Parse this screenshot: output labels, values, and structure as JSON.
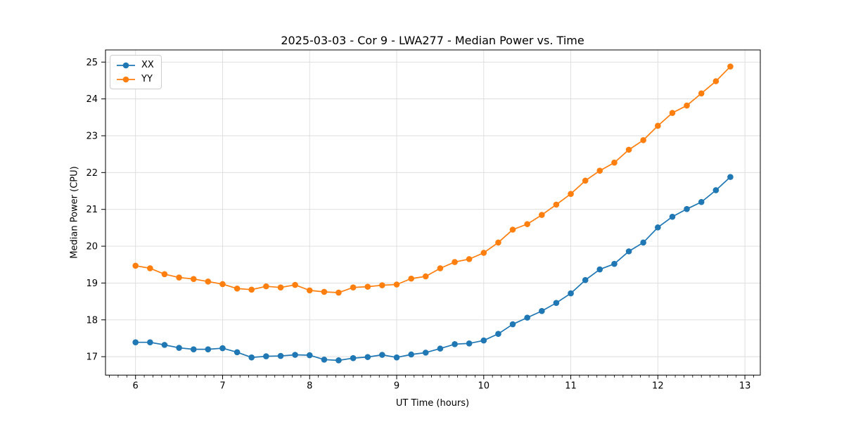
{
  "chart_data": {
    "type": "line",
    "title": "2025-03-03 - Cor 9 - LWA277 - Median Power vs. Time",
    "xlabel": "UT Time (hours)",
    "ylabel": "Median Power (CPU)",
    "xlim": [
      5.655,
      13.177
    ],
    "ylim": [
      16.5,
      25.33
    ],
    "x_major_ticks": [
      6,
      7,
      8,
      9,
      10,
      11,
      12,
      13
    ],
    "y_major_ticks": [
      17,
      18,
      19,
      20,
      21,
      22,
      23,
      24,
      25
    ],
    "x_minor_tick_step": 0.1,
    "grid": true,
    "grid_color": "#dcdcdc",
    "legend_position": "upper-left",
    "marker": "circle",
    "x": [
      6.0,
      6.167,
      6.333,
      6.5,
      6.667,
      6.833,
      7.0,
      7.167,
      7.333,
      7.5,
      7.667,
      7.833,
      8.0,
      8.167,
      8.333,
      8.5,
      8.667,
      8.833,
      9.0,
      9.167,
      9.333,
      9.5,
      9.667,
      9.833,
      10.0,
      10.167,
      10.333,
      10.5,
      10.667,
      10.833,
      11.0,
      11.167,
      11.333,
      11.5,
      11.667,
      11.833,
      12.0,
      12.167,
      12.333,
      12.5,
      12.667,
      12.833
    ],
    "series": [
      {
        "name": "XX",
        "color": "#1f77b4",
        "values": [
          17.39,
          17.39,
          17.32,
          17.24,
          17.2,
          17.2,
          17.23,
          17.12,
          16.98,
          17.01,
          17.02,
          17.05,
          17.04,
          16.92,
          16.9,
          16.96,
          16.99,
          17.05,
          16.98,
          17.06,
          17.11,
          17.22,
          17.34,
          17.36,
          17.44,
          17.62,
          17.88,
          18.06,
          18.24,
          18.46,
          18.72,
          19.08,
          19.37,
          19.52,
          19.86,
          20.1,
          20.51,
          20.8,
          21.01,
          21.2,
          21.52,
          21.88
        ]
      },
      {
        "name": "YY",
        "color": "#ff7f0e",
        "values": [
          19.47,
          19.4,
          19.24,
          19.15,
          19.11,
          19.04,
          18.97,
          18.85,
          18.82,
          18.91,
          18.88,
          18.95,
          18.8,
          18.76,
          18.74,
          18.88,
          18.9,
          18.94,
          18.96,
          19.12,
          19.18,
          19.4,
          19.57,
          19.65,
          19.82,
          20.1,
          20.45,
          20.6,
          20.85,
          21.13,
          21.42,
          21.78,
          22.05,
          22.27,
          22.62,
          22.88,
          23.27,
          23.62,
          23.82,
          24.15,
          24.48,
          24.88
        ]
      }
    ]
  }
}
